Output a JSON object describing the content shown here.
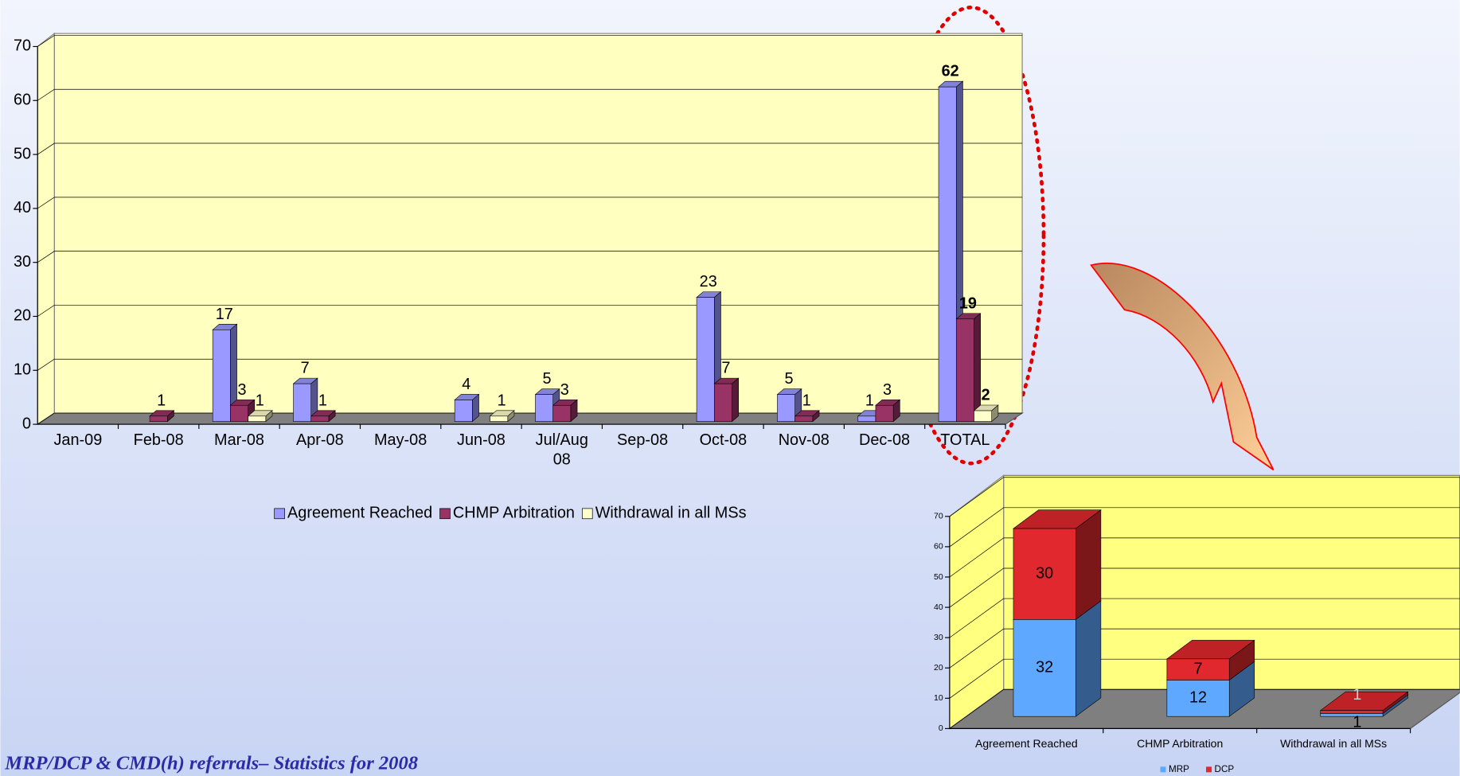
{
  "chart_data": [
    {
      "type": "bar",
      "categories": [
        "Jan-09",
        "Feb-08",
        "Mar-08",
        "Apr-08",
        "May-08",
        "Jun-08",
        "Jul/Aug 08",
        "Sep-08",
        "Oct-08",
        "Nov-08",
        "Dec-08",
        "TOTAL"
      ],
      "series": [
        {
          "name": "Agreement Reached",
          "color": "#9999ff",
          "values": [
            null,
            null,
            17,
            7,
            null,
            4,
            5,
            null,
            23,
            5,
            1,
            62
          ]
        },
        {
          "name": "CHMP Arbitration",
          "color": "#993366",
          "values": [
            null,
            1,
            3,
            1,
            null,
            null,
            3,
            null,
            7,
            1,
            3,
            19
          ]
        },
        {
          "name": "Withdrawal in all MSs",
          "color": "#ffffcc",
          "values": [
            null,
            null,
            1,
            null,
            null,
            1,
            null,
            null,
            null,
            null,
            null,
            2
          ]
        }
      ],
      "ylim": [
        0,
        70
      ],
      "yticks": [
        0,
        10,
        20,
        30,
        40,
        50,
        60,
        70
      ],
      "grid": true,
      "legend": "bottom"
    },
    {
      "type": "stacked_bar",
      "categories": [
        "Agreement Reached",
        "CHMP Arbitration",
        "Withdrawal in all MSs"
      ],
      "series": [
        {
          "name": "MRP",
          "color": "#5fa8ff",
          "values": [
            32,
            12,
            1
          ]
        },
        {
          "name": "DCP",
          "color": "#e0282e",
          "values": [
            30,
            7,
            1
          ]
        }
      ],
      "ylim": [
        0,
        70
      ],
      "yticks": [
        0,
        10,
        20,
        30,
        40,
        50,
        60,
        70
      ],
      "grid": true,
      "legend": "bottom"
    }
  ],
  "footer": "MRP/DCP & CMD(h) referrals– Statistics for 2008"
}
